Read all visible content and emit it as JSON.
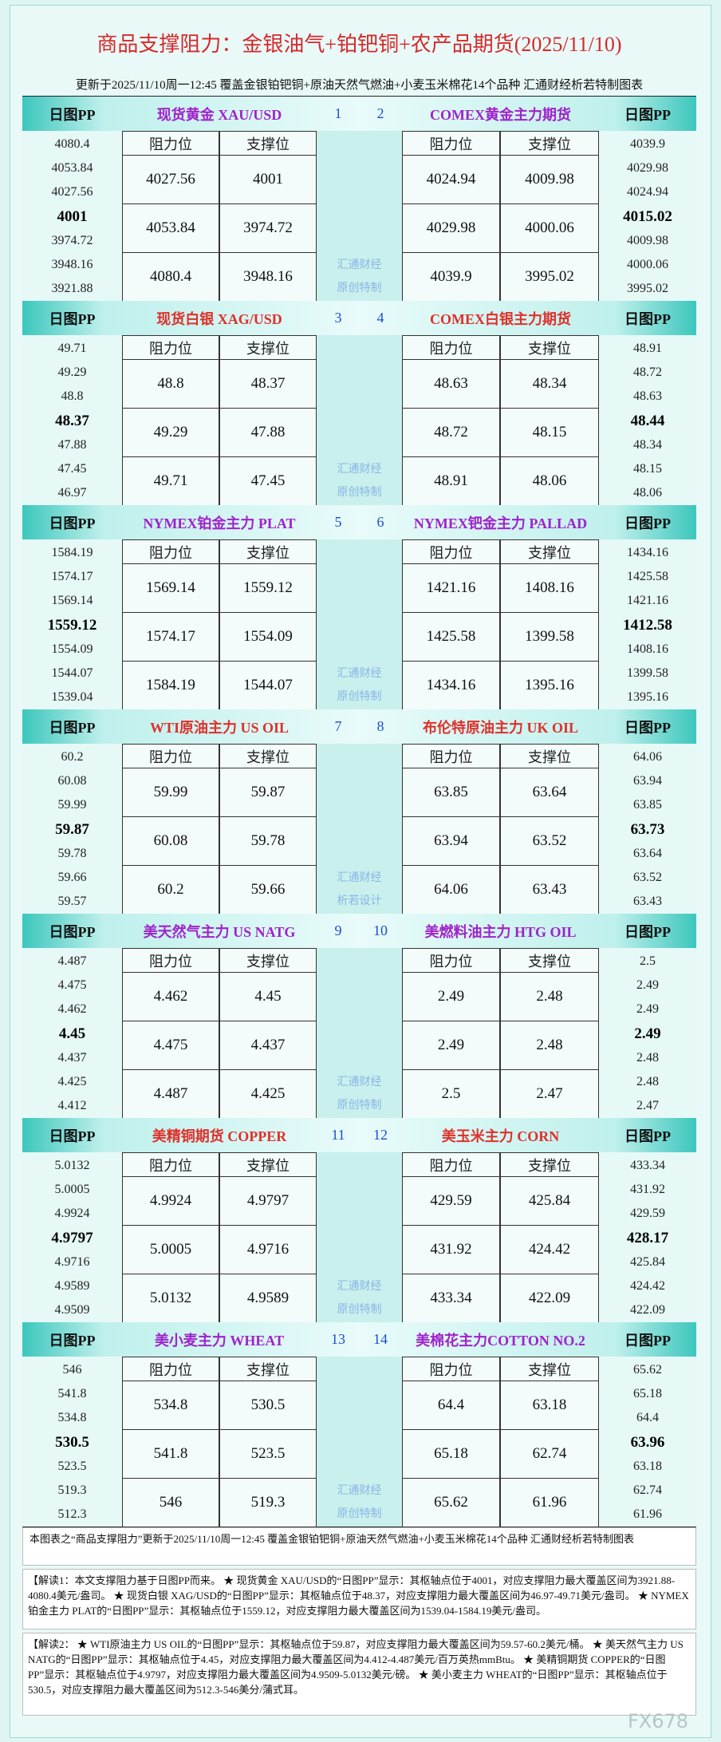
{
  "header": {
    "title": "商品支撑阻力：金银油气+铂钯铜+农产品期货(2025/11/10)",
    "subtitle": "更新于2025/11/10周一12:45 覆盖金银铂钯铜+原油天然气燃油+小麦玉米棉花14个品种 汇通财经析若特制图表"
  },
  "pp_label": "日图PP",
  "table_headers": [
    "阻力位",
    "支撑位"
  ],
  "sections": [
    {
      "left": {
        "name": "现货黄金 XAU/USD",
        "number": 1,
        "pp": [
          4080.4,
          4053.84,
          4027.56,
          4001,
          3974.72,
          3948.16,
          3921.88
        ],
        "rows": [
          [
            4027.56,
            4001
          ],
          [
            4053.84,
            3974.72
          ],
          [
            4080.4,
            3948.16
          ]
        ]
      },
      "right": {
        "name": "COMEX黄金主力期货",
        "number": 2,
        "pp": [
          4039.9,
          4029.98,
          4024.94,
          4015.02,
          4009.98,
          4000.06,
          3995.02
        ],
        "rows": [
          [
            4024.94,
            4009.98
          ],
          [
            4029.98,
            4000.06
          ],
          [
            4039.9,
            3995.02
          ]
        ]
      },
      "watermark": [
        "汇通财经",
        "原创特制"
      ]
    },
    {
      "left": {
        "name": "现货白银 XAG/USD",
        "number": 3,
        "pp": [
          49.71,
          49.29,
          48.8,
          48.37,
          47.88,
          47.45,
          46.97
        ],
        "rows": [
          [
            48.8,
            48.37
          ],
          [
            49.29,
            47.88
          ],
          [
            49.71,
            47.45
          ]
        ]
      },
      "right": {
        "name": "COMEX白银主力期货",
        "number": 4,
        "pp": [
          48.91,
          48.72,
          48.63,
          48.44,
          48.34,
          48.15,
          48.06
        ],
        "rows": [
          [
            48.63,
            48.34
          ],
          [
            48.72,
            48.15
          ],
          [
            48.91,
            48.06
          ]
        ]
      },
      "watermark": [
        "汇通财经",
        "原创特制"
      ]
    },
    {
      "left": {
        "name": "NYMEX铂金主力 PLAT",
        "number": 5,
        "pp": [
          1584.19,
          1574.17,
          1569.14,
          1559.12,
          1554.09,
          1544.07,
          1539.04
        ],
        "rows": [
          [
            1569.14,
            1559.12
          ],
          [
            1574.17,
            1554.09
          ],
          [
            1584.19,
            1544.07
          ]
        ]
      },
      "right": {
        "name": "NYMEX钯金主力 PALLAD",
        "number": 6,
        "pp": [
          1434.16,
          1425.58,
          1421.16,
          1412.58,
          1408.16,
          1399.58,
          1395.16
        ],
        "rows": [
          [
            1421.16,
            1408.16
          ],
          [
            1425.58,
            1399.58
          ],
          [
            1434.16,
            1395.16
          ]
        ]
      },
      "watermark": [
        "汇通财经",
        "原创特制"
      ]
    },
    {
      "left": {
        "name": "WTI原油主力 US OIL",
        "number": 7,
        "pp": [
          60.2,
          60.08,
          59.99,
          59.87,
          59.78,
          59.66,
          59.57
        ],
        "rows": [
          [
            59.99,
            59.87
          ],
          [
            60.08,
            59.78
          ],
          [
            60.2,
            59.66
          ]
        ]
      },
      "right": {
        "name": "布伦特原油主力 UK OIL",
        "number": 8,
        "pp": [
          64.06,
          63.94,
          63.85,
          63.73,
          63.64,
          63.52,
          63.43
        ],
        "rows": [
          [
            63.85,
            63.64
          ],
          [
            63.94,
            63.52
          ],
          [
            64.06,
            63.43
          ]
        ]
      },
      "watermark": [
        "汇通财经",
        "析若设计"
      ]
    },
    {
      "left": {
        "name": "美天然气主力 US NATG",
        "number": 9,
        "pp": [
          4.487,
          4.475,
          4.462,
          4.45,
          4.437,
          4.425,
          4.412
        ],
        "rows": [
          [
            4.462,
            4.45
          ],
          [
            4.475,
            4.437
          ],
          [
            4.487,
            4.425
          ]
        ]
      },
      "right": {
        "name": "美燃料油主力 HTG OIL",
        "number": 10,
        "pp": [
          2.5,
          2.49,
          2.49,
          2.49,
          2.48,
          2.48,
          2.47
        ],
        "rows": [
          [
            2.49,
            2.48
          ],
          [
            2.49,
            2.48
          ],
          [
            2.5,
            2.47
          ]
        ]
      },
      "watermark": [
        "汇通财经",
        "原创特制"
      ]
    },
    {
      "left": {
        "name": "美精铜期货 COPPER",
        "number": 11,
        "pp": [
          5.0132,
          5.0005,
          4.9924,
          4.9797,
          4.9716,
          4.9589,
          4.9509
        ],
        "rows": [
          [
            4.9924,
            4.9797
          ],
          [
            5.0005,
            4.9716
          ],
          [
            5.0132,
            4.9589
          ]
        ]
      },
      "right": {
        "name": "美玉米主力 CORN",
        "number": 12,
        "pp": [
          433.34,
          431.92,
          429.59,
          428.17,
          425.84,
          424.42,
          422.09
        ],
        "rows": [
          [
            429.59,
            425.84
          ],
          [
            431.92,
            424.42
          ],
          [
            433.34,
            422.09
          ]
        ]
      },
      "watermark": [
        "汇通财经",
        "原创特制"
      ]
    },
    {
      "left": {
        "name": "美小麦主力 WHEAT",
        "number": 13,
        "pp": [
          546,
          541.8,
          534.8,
          530.5,
          523.5,
          519.3,
          512.3
        ],
        "rows": [
          [
            534.8,
            530.5
          ],
          [
            541.8,
            523.5
          ],
          [
            546,
            519.3
          ]
        ]
      },
      "right": {
        "name": "美棉花主力COTTON NO.2",
        "number": 14,
        "pp": [
          65.62,
          65.18,
          64.4,
          63.96,
          63.18,
          62.74,
          61.96
        ],
        "rows": [
          [
            64.4,
            63.18
          ],
          [
            65.18,
            62.74
          ],
          [
            65.62,
            61.96
          ]
        ]
      },
      "watermark": [
        "汇通财经",
        "原创特制"
      ]
    }
  ],
  "footer": {
    "note": "本图表之“商品支撑阻力”更新于2025/11/10周一12:45 覆盖金银铂钯铜+原油天然气燃油+小麦玉米棉花14个品种 汇通财经析若特制图表",
    "explanations": [
      "【解读1：本文支撑阻力基于日图PP而来。 ★ 现货黄金 XAU/USD的“日图PP”显示：其枢轴点位于4001，对应支撑阻力最大覆盖区间为3921.88-4080.4美元/盎司。 ★ 现货白银 XAG/USD的“日图PP”显示：其枢轴点位于48.37，对应支撑阻力最大覆盖区间为46.97-49.71美元/盎司。 ★ NYMEX铂金主力 PLAT的“日图PP”显示：其枢轴点位于1559.12，对应支撑阻力最大覆盖区间为1539.04-1584.19美元/盎司。",
      "【解读2： ★ WTI原油主力 US OIL的“日图PP”显示：其枢轴点位于59.87，对应支撑阻力最大覆盖区间为59.57-60.2美元/桶。 ★ 美天然气主力 US NATG的“日图PP”显示：其枢轴点位于4.45，对应支撑阻力最大覆盖区间为4.412-4.487美元/百万英热mmBtu。 ★ 美精铜期货 COPPER的“日图PP”显示：其枢轴点位于4.9797，对应支撑阻力最大覆盖区间为4.9509-5.0132美元/磅。 ★ 美小麦主力 WHEAT的“日图PP”显示：其枢轴点位于530.5，对应支撑阻力最大覆盖区间为512.3-546美分/蒲式耳。"
    ]
  },
  "watermark": "FX678"
}
